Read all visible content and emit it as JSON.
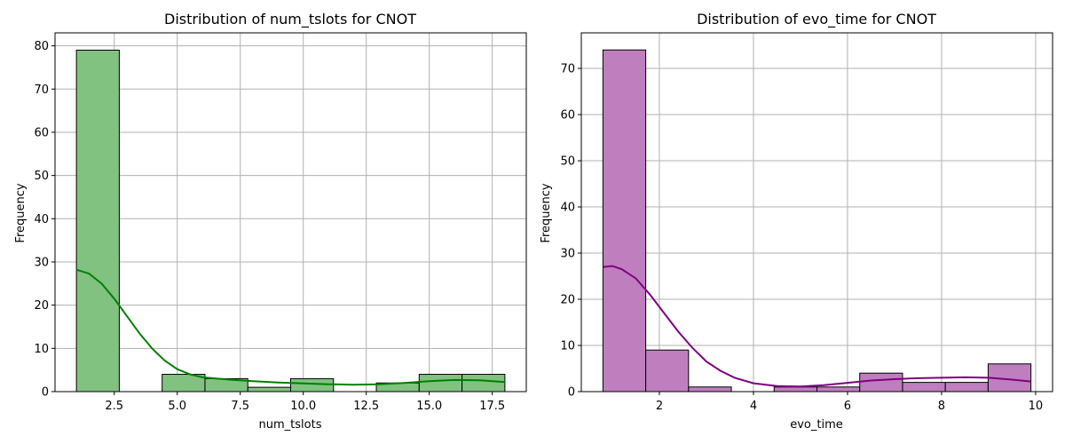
{
  "chart_data": [
    {
      "type": "bar",
      "title": "Distribution of num_tslots for CNOT",
      "xlabel": "num_tslots",
      "ylabel": "Frequency",
      "xlim": [
        0.15,
        18.85
      ],
      "ylim": [
        0,
        83
      ],
      "xticks": [
        2.5,
        5.0,
        7.5,
        10.0,
        12.5,
        15.0,
        17.5
      ],
      "xtick_labels": [
        "2.5",
        "5.0",
        "7.5",
        "10.0",
        "12.5",
        "15.0",
        "17.5"
      ],
      "yticks": [
        0,
        10,
        20,
        30,
        40,
        50,
        60,
        70,
        80
      ],
      "ytick_labels": [
        "0",
        "10",
        "20",
        "30",
        "40",
        "50",
        "60",
        "70",
        "80"
      ],
      "grid": true,
      "bar_color": "#81c281",
      "kde_color": "#008000",
      "bins": [
        {
          "x0": 1.0,
          "x1": 2.7,
          "count": 79
        },
        {
          "x0": 2.7,
          "x1": 4.4,
          "count": 0
        },
        {
          "x0": 4.4,
          "x1": 6.1,
          "count": 4
        },
        {
          "x0": 6.1,
          "x1": 7.8,
          "count": 3
        },
        {
          "x0": 7.8,
          "x1": 9.5,
          "count": 1
        },
        {
          "x0": 9.5,
          "x1": 11.2,
          "count": 3
        },
        {
          "x0": 11.2,
          "x1": 12.9,
          "count": 0
        },
        {
          "x0": 12.9,
          "x1": 14.6,
          "count": 2
        },
        {
          "x0": 14.6,
          "x1": 16.3,
          "count": 4
        },
        {
          "x0": 16.3,
          "x1": 18.0,
          "count": 4
        }
      ],
      "kde": [
        [
          1.0,
          28.2
        ],
        [
          1.5,
          27.3
        ],
        [
          2.0,
          25.0
        ],
        [
          2.5,
          21.5
        ],
        [
          3.0,
          17.5
        ],
        [
          3.5,
          13.5
        ],
        [
          4.0,
          10.0
        ],
        [
          4.5,
          7.2
        ],
        [
          5.0,
          5.2
        ],
        [
          5.5,
          4.0
        ],
        [
          6.0,
          3.3
        ],
        [
          7.0,
          2.8
        ],
        [
          8.0,
          2.4
        ],
        [
          9.0,
          2.1
        ],
        [
          10.0,
          1.9
        ],
        [
          11.0,
          1.7
        ],
        [
          12.0,
          1.6
        ],
        [
          13.0,
          1.7
        ],
        [
          14.0,
          2.0
        ],
        [
          15.0,
          2.4
        ],
        [
          16.0,
          2.7
        ],
        [
          17.0,
          2.6
        ],
        [
          18.0,
          2.2
        ]
      ]
    },
    {
      "type": "bar",
      "title": "Distribution of evo_time for CNOT",
      "xlabel": "evo_time",
      "ylabel": "Frequency",
      "xlim": [
        0.34,
        10.36
      ],
      "ylim": [
        0,
        77.7
      ],
      "xticks": [
        2,
        4,
        6,
        8,
        10
      ],
      "xtick_labels": [
        "2",
        "4",
        "6",
        "8",
        "10"
      ],
      "yticks": [
        0,
        10,
        20,
        30,
        40,
        50,
        60,
        70
      ],
      "ytick_labels": [
        "0",
        "10",
        "20",
        "30",
        "40",
        "50",
        "60",
        "70"
      ],
      "grid": true,
      "bar_color": "#bf7fbf",
      "kde_color": "#800080",
      "bins": [
        {
          "x0": 0.8,
          "x1": 1.71,
          "count": 74
        },
        {
          "x0": 1.71,
          "x1": 2.62,
          "count": 9
        },
        {
          "x0": 2.62,
          "x1": 3.53,
          "count": 1
        },
        {
          "x0": 3.53,
          "x1": 4.44,
          "count": 0
        },
        {
          "x0": 4.44,
          "x1": 5.35,
          "count": 1
        },
        {
          "x0": 5.35,
          "x1": 6.26,
          "count": 1
        },
        {
          "x0": 6.26,
          "x1": 7.17,
          "count": 4
        },
        {
          "x0": 7.17,
          "x1": 8.08,
          "count": 2
        },
        {
          "x0": 8.08,
          "x1": 8.99,
          "count": 2
        },
        {
          "x0": 8.99,
          "x1": 9.9,
          "count": 6
        }
      ],
      "kde": [
        [
          0.8,
          27.0
        ],
        [
          1.0,
          27.2
        ],
        [
          1.2,
          26.5
        ],
        [
          1.5,
          24.5
        ],
        [
          1.8,
          21.0
        ],
        [
          2.1,
          17.0
        ],
        [
          2.4,
          13.0
        ],
        [
          2.7,
          9.5
        ],
        [
          3.0,
          6.5
        ],
        [
          3.3,
          4.5
        ],
        [
          3.6,
          3.0
        ],
        [
          4.0,
          1.8
        ],
        [
          4.5,
          1.2
        ],
        [
          5.0,
          1.1
        ],
        [
          5.5,
          1.4
        ],
        [
          6.0,
          1.9
        ],
        [
          6.5,
          2.4
        ],
        [
          7.0,
          2.7
        ],
        [
          7.5,
          2.9
        ],
        [
          8.0,
          3.0
        ],
        [
          8.5,
          3.1
        ],
        [
          9.0,
          3.0
        ],
        [
          9.5,
          2.6
        ],
        [
          9.9,
          2.2
        ]
      ]
    }
  ]
}
